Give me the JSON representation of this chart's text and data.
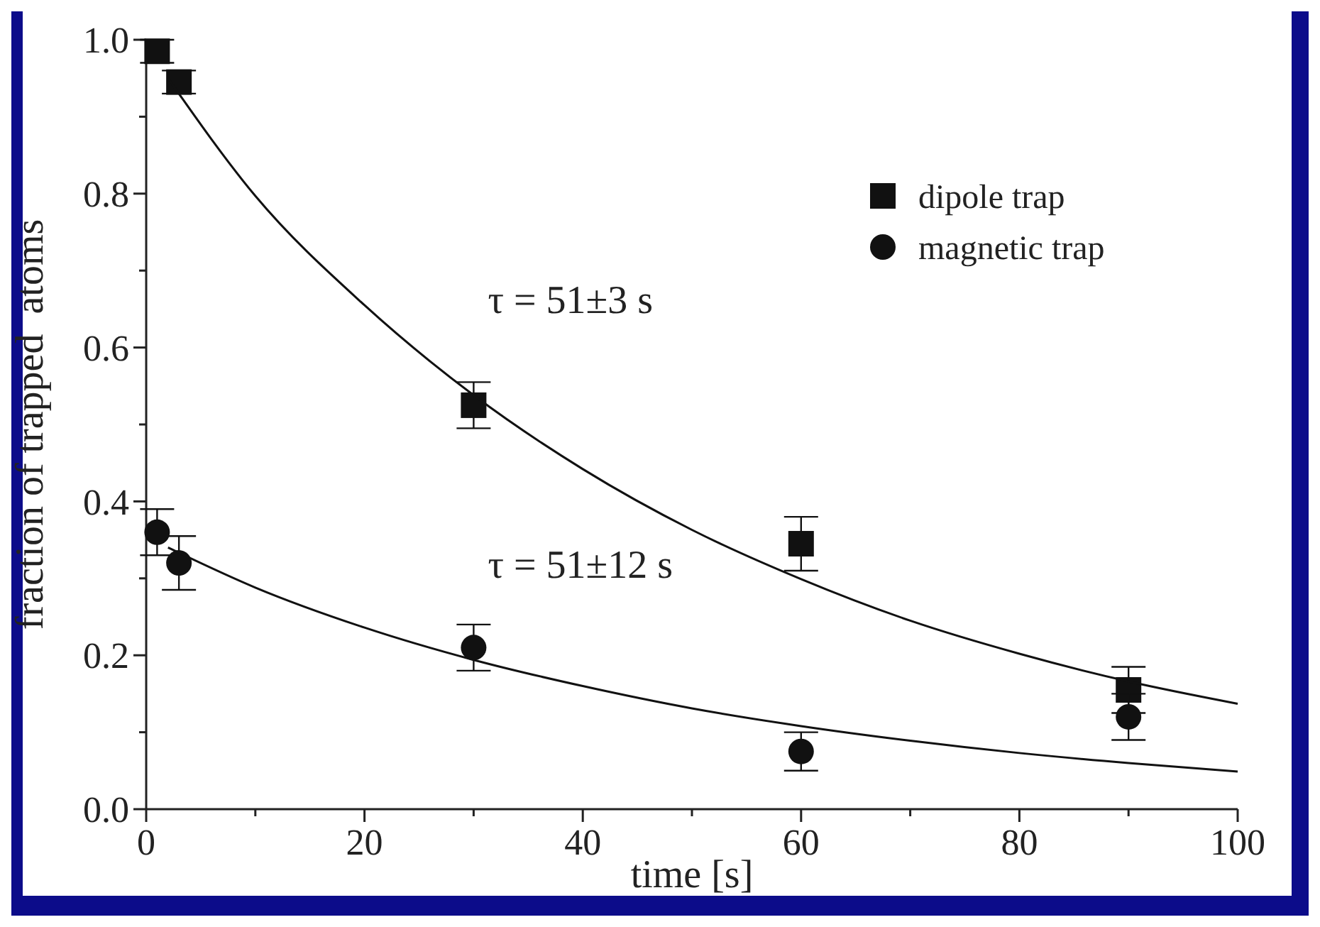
{
  "chart_data": {
    "type": "scatter",
    "xlabel": "time [s]",
    "ylabel": "fraction of trapped  atoms",
    "xlim": [
      0,
      100
    ],
    "ylim": [
      0,
      1.0
    ],
    "xticks": [
      0,
      {
        "value": 10,
        "label": null
      },
      20,
      {
        "value": 30,
        "label": null
      },
      40,
      {
        "value": 50,
        "label": null
      },
      60,
      {
        "value": 70,
        "label": null
      },
      80,
      {
        "value": 90,
        "label": null
      },
      100
    ],
    "yticks": [
      {
        "value": 0,
        "label": "0.0"
      },
      {
        "value": 0.1,
        "label": null
      },
      0.2,
      {
        "value": 0.3,
        "label": null
      },
      0.4,
      {
        "value": 0.5,
        "label": null
      },
      0.6,
      {
        "value": 0.7,
        "label": null
      },
      0.8,
      {
        "value": 0.9,
        "label": null
      },
      {
        "value": 1,
        "label": "1.0"
      }
    ],
    "grid": false,
    "legend": "top right",
    "series": [
      {
        "name": "dipole trap",
        "marker": "square",
        "color": "#111111",
        "x": [
          1,
          3,
          30,
          60,
          90
        ],
        "values": [
          0.985,
          0.945,
          0.525,
          0.345,
          0.155
        ],
        "errors": [
          0.015,
          0.015,
          0.03,
          0.035,
          0.03
        ]
      },
      {
        "name": "magnetic trap",
        "marker": "circle",
        "color": "#111111",
        "x": [
          1,
          3,
          30,
          60,
          90
        ],
        "values": [
          0.36,
          0.32,
          0.21,
          0.075,
          0.12
        ],
        "errors": [
          0.03,
          0.035,
          0.03,
          0.025,
          0.03
        ]
      },
      {
        "type": "line",
        "marker": "none",
        "color": "#111111",
        "x": [
          2,
          10,
          20,
          30,
          40,
          50,
          60,
          70,
          80,
          90,
          100
        ],
        "values": [
          0.95,
          0.797,
          0.655,
          0.538,
          0.442,
          0.363,
          0.299,
          0.245,
          0.202,
          0.166,
          0.137
        ]
      },
      {
        "type": "line",
        "marker": "none",
        "color": "#111111",
        "x": [
          2,
          10,
          20,
          30,
          40,
          50,
          60,
          70,
          80,
          90,
          100
        ],
        "values": [
          0.34,
          0.288,
          0.236,
          0.194,
          0.16,
          0.131,
          0.108,
          0.089,
          0.073,
          0.06,
          0.049
        ]
      }
    ],
    "annotations": [
      "τ = 51±3 s",
      "τ = 51±12 s"
    ]
  }
}
